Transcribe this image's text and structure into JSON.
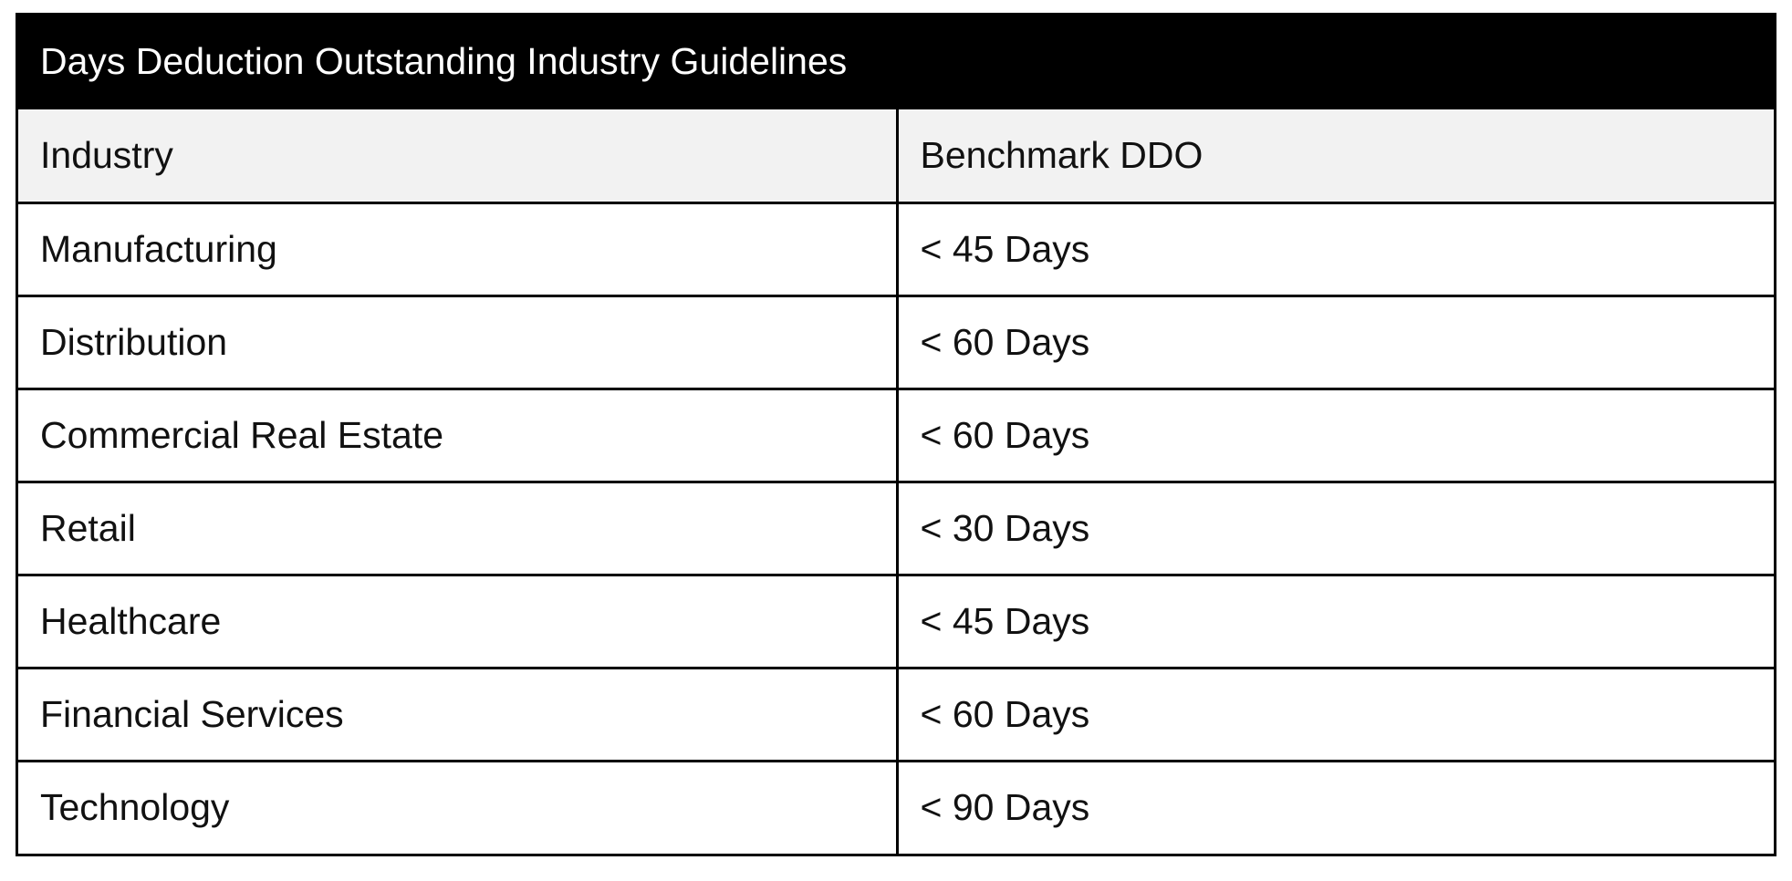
{
  "table": {
    "title": "Days Deduction Outstanding Industry Guidelines",
    "headers": [
      "Industry",
      "Benchmark DDO"
    ],
    "rows": [
      [
        "Manufacturing",
        "< 45 Days"
      ],
      [
        "Distribution",
        "< 60 Days"
      ],
      [
        "Commercial Real Estate",
        "< 60 Days"
      ],
      [
        "Retail",
        "< 30 Days"
      ],
      [
        "Healthcare",
        "< 45 Days"
      ],
      [
        "Financial Services",
        "< 60 Days"
      ],
      [
        "Technology",
        "< 90 Days"
      ]
    ]
  },
  "colors": {
    "title_background": "#000000",
    "title_text": "#ffffff",
    "header_background": "#f2f2f2",
    "border": "#000000"
  }
}
